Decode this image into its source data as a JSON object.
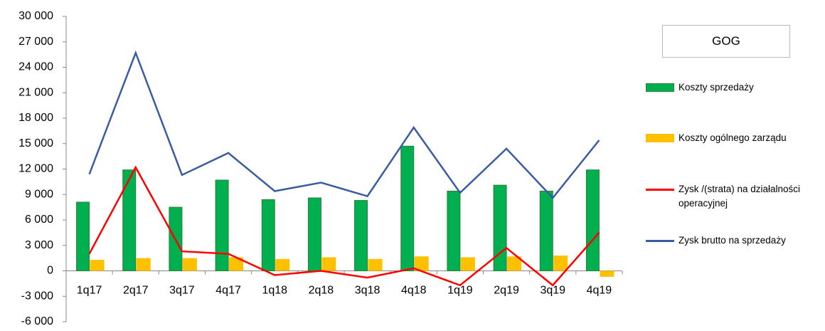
{
  "chart_data": {
    "type": "bar",
    "title": "GOG",
    "categories": [
      "1q17",
      "2q17",
      "3q17",
      "4q17",
      "1q18",
      "2q18",
      "3q18",
      "4q18",
      "1q19",
      "2q19",
      "3q19",
      "4q19"
    ],
    "series": [
      {
        "name": "Koszty sprzedaży",
        "type": "bar",
        "color": "#00b050",
        "values": [
          8100,
          11900,
          7500,
          10700,
          8400,
          8600,
          8300,
          14700,
          9400,
          10100,
          9400,
          11900
        ]
      },
      {
        "name": "Koszty ogólnego zarządu",
        "type": "bar",
        "color": "#ffc000",
        "values": [
          1300,
          1500,
          1500,
          1600,
          1400,
          1600,
          1400,
          1700,
          1600,
          1700,
          1800,
          -700
        ]
      },
      {
        "name": "Zysk /(strata) na działalności operacyjnej",
        "type": "line",
        "color": "#ff0000",
        "values": [
          2000,
          12200,
          2300,
          2000,
          -500,
          0,
          -800,
          300,
          -1700,
          2700,
          -1700,
          4500
        ]
      },
      {
        "name": "Zysk brutto na sprzedaży",
        "type": "line",
        "color": "#3a5ca0",
        "values": [
          11400,
          25700,
          11300,
          13900,
          9400,
          10400,
          8800,
          16900,
          9200,
          14400,
          8600,
          15400
        ]
      }
    ],
    "ylim": [
      -6000,
      30000
    ],
    "yticks": [
      {
        "value": -6000,
        "label": "-6 000"
      },
      {
        "value": -3000,
        "label": "-3 000"
      },
      0,
      {
        "value": 3000,
        "label": "3 000"
      },
      {
        "value": 6000,
        "label": "6 000"
      },
      {
        "value": 9000,
        "label": "9 000"
      },
      {
        "value": 12000,
        "label": "12 000"
      },
      {
        "value": 15000,
        "label": "15 000"
      },
      {
        "value": 18000,
        "label": "18 000"
      },
      {
        "value": 21000,
        "label": "21 000"
      },
      {
        "value": 24000,
        "label": "24 000"
      },
      {
        "value": 27000,
        "label": "27 000"
      },
      {
        "value": 30000,
        "label": "30 000"
      }
    ],
    "legend": "right"
  }
}
